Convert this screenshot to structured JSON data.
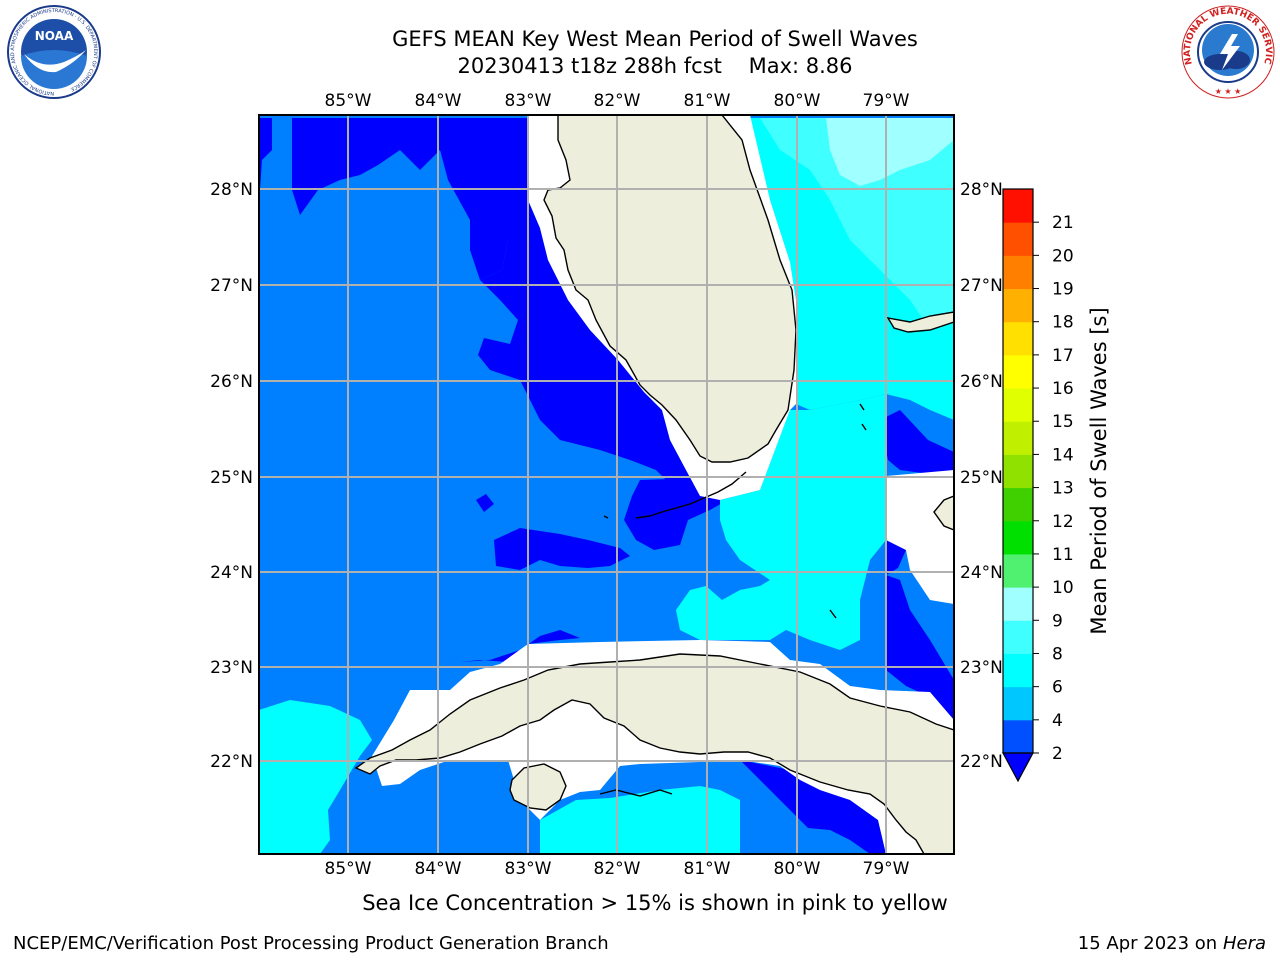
{
  "header": {
    "title_line1": "GEFS MEAN Key West Mean Period of Swell Waves",
    "title_line2": "20230413 t18z 288h fcst    Max: 8.86"
  },
  "map": {
    "lon_labels": [
      "85°W",
      "84°W",
      "83°W",
      "82°W",
      "81°W",
      "80°W",
      "79°W"
    ],
    "lat_labels": [
      "28°N",
      "27°N",
      "26°N",
      "25°N",
      "24°N",
      "23°N",
      "22°N"
    ]
  },
  "colorbar": {
    "label": "Mean Period of Swell Waves [s]",
    "ticks": [
      "2",
      "4",
      "6",
      "8",
      "9",
      "10",
      "11",
      "12",
      "13",
      "14",
      "15",
      "16",
      "17",
      "18",
      "19",
      "20",
      "21"
    ],
    "colors": [
      "#0050ff",
      "#00c8ff",
      "#00ffff",
      "#40ffff",
      "#a0ffff",
      "#50f070",
      "#00e000",
      "#40d000",
      "#90e000",
      "#c0f000",
      "#e0ff00",
      "#ffff00",
      "#ffe000",
      "#ffb000",
      "#ff8000",
      "#ff5000",
      "#ff1000"
    ],
    "extend_color": "#0000ff"
  },
  "colors": {
    "land": "#eeeedd",
    "period_2_4": "#0080ff",
    "period_below_2": "#0000ff",
    "period_4_6": "#00ffff",
    "period_6_8": "#40ffff",
    "period_8_9": "#a0ffff",
    "grid": "#b0b0b0"
  },
  "footer": {
    "note": "Sea Ice Concentration > 15% is shown in pink to yellow",
    "credit": "NCEP/EMC/Verification Post Processing Product Generation Branch",
    "date": "15 Apr 2023 on ",
    "host": "Hera"
  },
  "logos": {
    "left_text": "NOAA",
    "left_ring": "NATIONAL OCEANIC AND ATMOSPHERIC ADMINISTRATION · U.S. DEPARTMENT OF COMMERCE",
    "right_ring": "NATIONAL WEATHER SERVICE"
  }
}
